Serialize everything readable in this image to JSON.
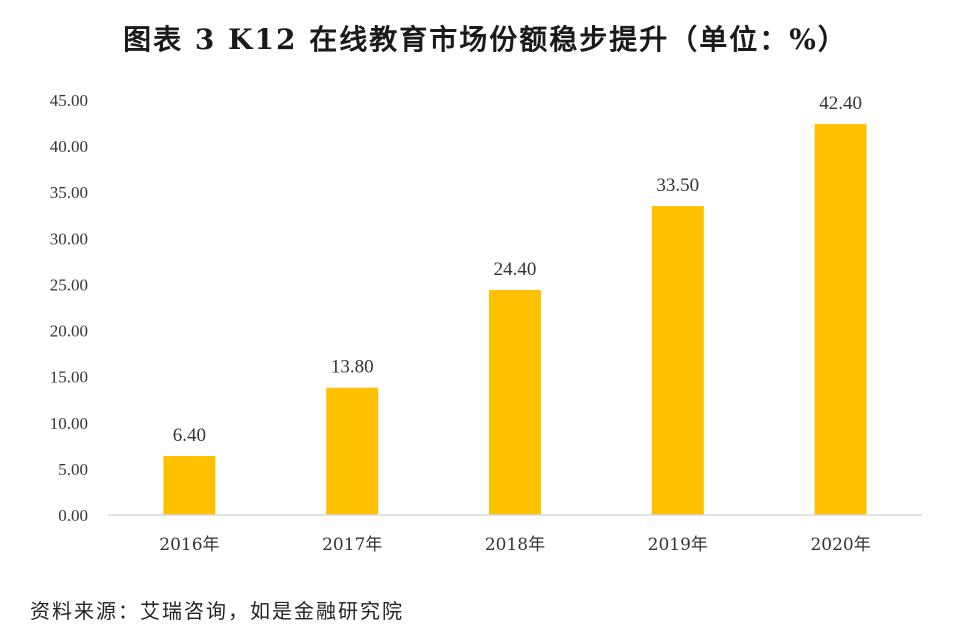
{
  "chart_data": {
    "type": "bar",
    "title": "图表 3 K12 在线教育市场份额稳步提升（单位：%）",
    "source": "资料来源：艾瑞咨询，如是金融研究院",
    "categories": [
      "2016年",
      "2017年",
      "2018年",
      "2019年",
      "2020年"
    ],
    "values": [
      6.4,
      13.8,
      24.4,
      33.5,
      42.4
    ],
    "data_labels": [
      "6.40",
      "13.80",
      "24.40",
      "33.50",
      "42.40"
    ],
    "ylim": [
      0,
      45
    ],
    "yticks": [
      "0.00",
      "5.00",
      "10.00",
      "15.00",
      "20.00",
      "25.00",
      "30.00",
      "35.00",
      "40.00",
      "45.00"
    ],
    "grid": false,
    "legend": "none",
    "bar_color": "#FFC000",
    "axis_color": "#D9D9D9"
  }
}
